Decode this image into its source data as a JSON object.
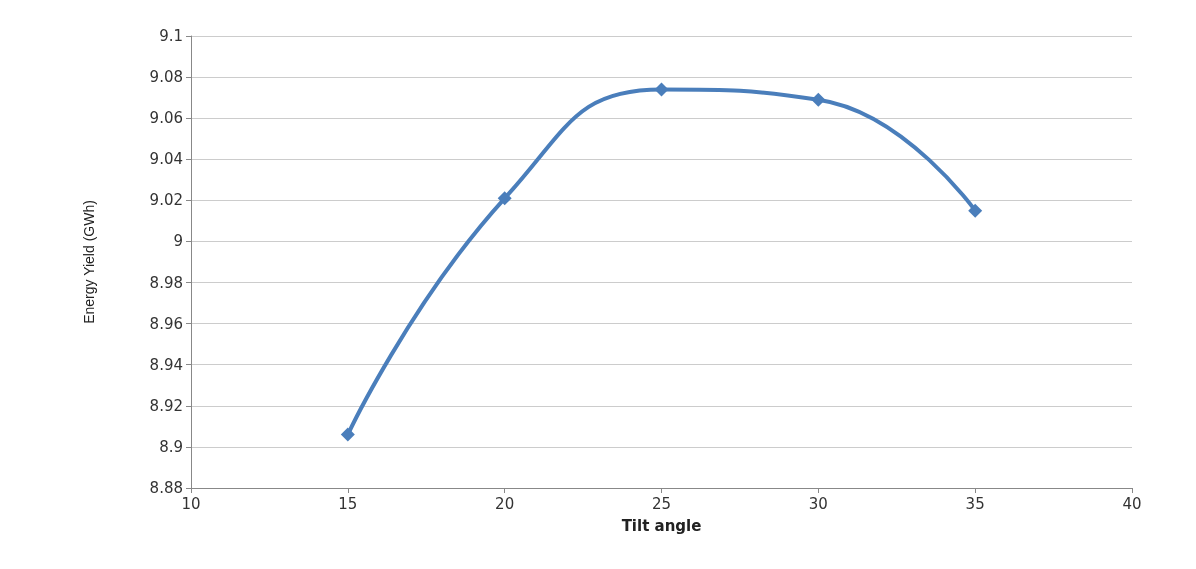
{
  "chart_data": {
    "type": "line",
    "xlabel": "Tilt angle",
    "ylabel": "Energy Yield (GWh)",
    "x": [
      15,
      20,
      25,
      30,
      35
    ],
    "series": [
      {
        "color": "#4a7ebb",
        "values": [
          8.906,
          9.021,
          9.074,
          9.069,
          9.015
        ]
      }
    ],
    "xlim": [
      10,
      40
    ],
    "xticks": [
      10,
      15,
      20,
      25,
      30,
      35,
      40
    ],
    "ylim": [
      8.88,
      9.1
    ],
    "yticks": [
      8.88,
      8.9,
      8.92,
      8.94,
      8.96,
      8.98,
      9,
      9.02,
      9.04,
      9.06,
      9.08,
      9.1
    ],
    "grid": "y",
    "marker": "diamond",
    "line_style": "solid"
  }
}
